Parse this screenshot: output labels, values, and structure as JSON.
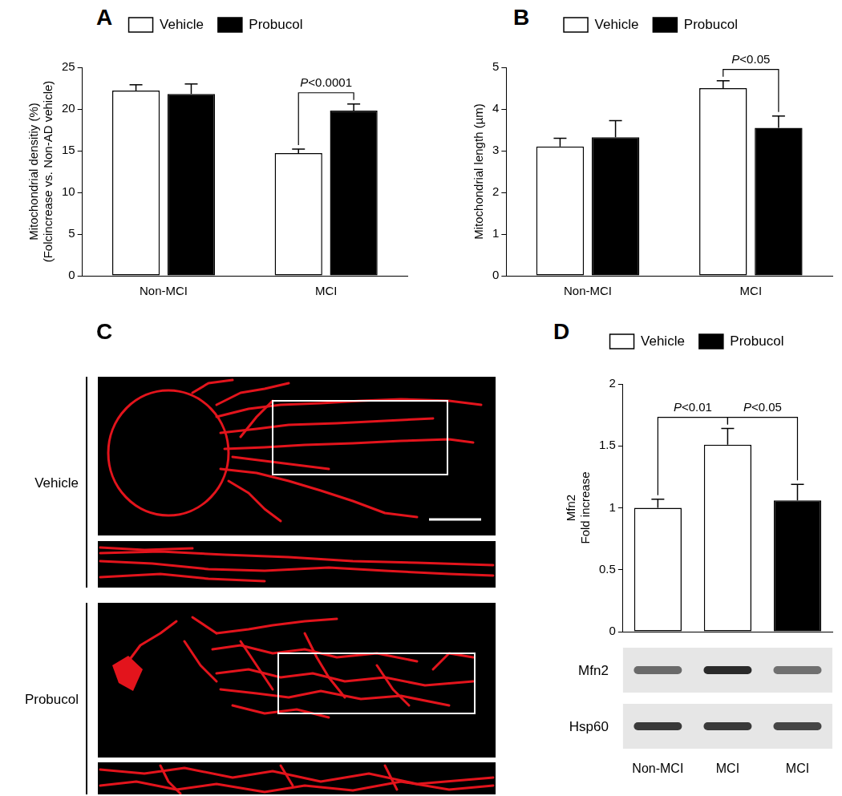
{
  "chart_data": [
    {
      "panel": "A",
      "type": "bar",
      "categories": [
        "Non-MCI",
        "MCI"
      ],
      "series": [
        {
          "name": "Vehicle",
          "color": "#ffffff",
          "values": [
            22.2,
            14.7
          ],
          "errors": [
            0.7,
            0.5
          ]
        },
        {
          "name": "Probucol",
          "color": "#000000",
          "values": [
            21.8,
            19.8
          ],
          "errors": [
            1.2,
            0.8
          ]
        }
      ],
      "y_label": [
        "Mitochondrial densitiy (%)",
        "(Folcincrease vs. Non-AD vehicle)"
      ],
      "ylim": [
        0,
        25
      ],
      "yticks": [
        0,
        5,
        10,
        15,
        20,
        25
      ],
      "grid": false,
      "legend": "top",
      "annotations": [
        "P<0.0001"
      ]
    },
    {
      "panel": "B",
      "type": "bar",
      "categories": [
        "Non-MCI",
        "MCI"
      ],
      "series": [
        {
          "name": "Vehicle",
          "color": "#ffffff",
          "values": [
            3.1,
            4.5
          ],
          "errors": [
            0.2,
            0.18
          ]
        },
        {
          "name": "Probucol",
          "color": "#000000",
          "values": [
            3.32,
            3.55
          ],
          "errors": [
            0.4,
            0.28
          ]
        }
      ],
      "y_label": "Mitochondrial length (µm)",
      "ylim": [
        0,
        5
      ],
      "yticks": [
        0,
        1,
        2,
        3,
        4,
        5
      ],
      "grid": false,
      "legend": "top",
      "annotations": [
        "P<0.05"
      ]
    },
    {
      "panel": "D",
      "type": "bar",
      "categories": [
        "Non-MCI",
        "MCI",
        "MCI"
      ],
      "series": [
        {
          "name": "Vehicle",
          "color": "#ffffff",
          "values": [
            1.0,
            1.51,
            null
          ],
          "errors": [
            0.07,
            0.13,
            null
          ]
        },
        {
          "name": "Probucol",
          "color": "#000000",
          "values": [
            null,
            null,
            1.06
          ],
          "errors": [
            null,
            null,
            0.13
          ]
        }
      ],
      "y_label": [
        "Mfn2",
        "Fold increase"
      ],
      "ylim": [
        0,
        2
      ],
      "yticks": [
        0,
        0.5,
        1,
        1.5,
        2
      ],
      "grid": false,
      "legend": "top",
      "tick_labels": "y",
      "annotations": [
        "P<0.01",
        "P<0.05"
      ],
      "blot": {
        "rows": [
          "Mfn2",
          "Hsp60"
        ]
      }
    }
  ],
  "images": {
    "panel": "C",
    "rows": [
      "Vehicle",
      "Probucol"
    ]
  }
}
